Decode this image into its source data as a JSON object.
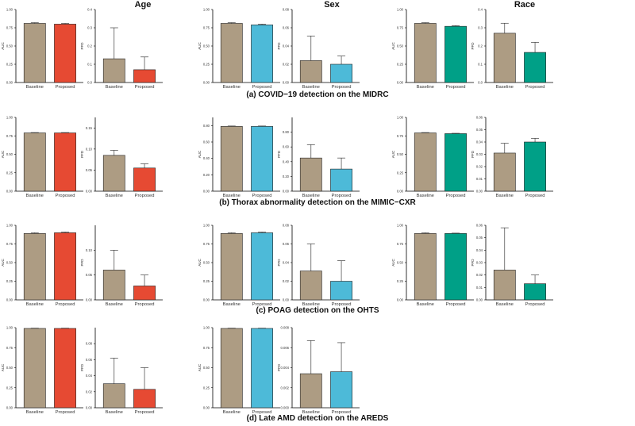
{
  "colors": {
    "baseline": "#ad9c83",
    "age": "#e64a33",
    "sex": "#4dbad8",
    "race": "#00a087"
  },
  "column_titles": [
    "Age",
    "Sex",
    "Race"
  ],
  "captions": [
    "(a) COVID−19 detection on the MIDRC",
    "(b) Thorax abnormality detection on the MIMIC−CXR",
    "(c) POAG detection on the OHTS",
    "(d) Late AMD detection on the AREDS"
  ],
  "chart_data": [
    {
      "row": 0,
      "col": 0,
      "metric": "AUC",
      "type": "bar",
      "categories": [
        "Baseline",
        "Proposed"
      ],
      "values": [
        0.81,
        0.8
      ],
      "errors": [
        0.01,
        0.01
      ],
      "ylabel": "AUC",
      "ylim": [
        0,
        1.0
      ],
      "ticks": [
        "0.00",
        "0.25",
        "0.50",
        "0.75",
        "1.00"
      ],
      "color": "age"
    },
    {
      "row": 0,
      "col": 0,
      "metric": "PFD",
      "type": "bar",
      "categories": [
        "Baseline",
        "Proposed"
      ],
      "values": [
        0.13,
        0.07
      ],
      "errors": [
        0.17,
        0.07
      ],
      "ylabel": "PFD",
      "ylim": [
        0,
        0.4
      ],
      "ticks": [
        "0.0",
        "0.1",
        "0.2",
        "0.3",
        "0.4"
      ],
      "color": "age"
    },
    {
      "row": 0,
      "col": 1,
      "metric": "AUC",
      "type": "bar",
      "categories": [
        "Baseline",
        "Proposed"
      ],
      "values": [
        0.81,
        0.79
      ],
      "errors": [
        0.01,
        0.01
      ],
      "ylabel": "AUC",
      "ylim": [
        0,
        1.0
      ],
      "ticks": [
        "0.00",
        "0.25",
        "0.50",
        "0.75",
        "1.00"
      ],
      "color": "sex"
    },
    {
      "row": 0,
      "col": 1,
      "metric": "PFD",
      "type": "bar",
      "categories": [
        "Baseline",
        "Proposed"
      ],
      "values": [
        0.024,
        0.02
      ],
      "errors": [
        0.027,
        0.009
      ],
      "ylabel": "PFD",
      "ylim": [
        0,
        0.08
      ],
      "ticks": [
        "0.00",
        "0.02",
        "0.04",
        "0.06",
        "0.08"
      ],
      "color": "sex"
    },
    {
      "row": 0,
      "col": 2,
      "metric": "AUC",
      "type": "bar",
      "categories": [
        "Baseline",
        "Proposed"
      ],
      "values": [
        0.81,
        0.77
      ],
      "errors": [
        0.01,
        0.01
      ],
      "ylabel": "AUC",
      "ylim": [
        0,
        1.0
      ],
      "ticks": [
        "0.00",
        "0.25",
        "0.50",
        "0.75",
        "1.00"
      ],
      "color": "race"
    },
    {
      "row": 0,
      "col": 2,
      "metric": "PFD",
      "type": "bar",
      "categories": [
        "Baseline",
        "Proposed"
      ],
      "values": [
        0.27,
        0.165
      ],
      "errors": [
        0.055,
        0.055
      ],
      "ylabel": "PFD",
      "ylim": [
        0,
        0.4
      ],
      "ticks": [
        "0.0",
        "0.1",
        "0.2",
        "0.3",
        "0.4"
      ],
      "color": "race"
    },
    {
      "row": 1,
      "col": 0,
      "metric": "AUC",
      "type": "bar",
      "categories": [
        "Baseline",
        "Proposed"
      ],
      "values": [
        0.79,
        0.79
      ],
      "errors": [
        0.005,
        0.005
      ],
      "ylabel": "AUC",
      "ylim": [
        0,
        1.0
      ],
      "ticks": [
        "0.00",
        "0.25",
        "0.50",
        "0.75",
        "1.00"
      ],
      "color": "age"
    },
    {
      "row": 1,
      "col": 0,
      "metric": "PFD",
      "type": "bar",
      "categories": [
        "Baseline",
        "Proposed"
      ],
      "values": [
        0.085,
        0.055
      ],
      "errors": [
        0.012,
        0.01
      ],
      "ylabel": "PFD",
      "ylim": [
        0,
        0.175
      ],
      "ticks": [
        "0.00",
        "0.05",
        "0.10",
        "0.15"
      ],
      "color": "age"
    },
    {
      "row": 1,
      "col": 1,
      "metric": "AUC",
      "type": "bar",
      "categories": [
        "Baseline",
        "Proposed"
      ],
      "values": [
        0.79,
        0.79
      ],
      "errors": [
        0.005,
        0.005
      ],
      "ylabel": "AUC",
      "ylim": [
        0,
        0.9
      ],
      "ticks": [
        "0.00",
        "0.20",
        "0.40",
        "0.60",
        "0.80"
      ],
      "color": "sex"
    },
    {
      "row": 1,
      "col": 1,
      "metric": "PFD",
      "type": "bar",
      "categories": [
        "Baseline",
        "Proposed"
      ],
      "values": [
        0.45,
        0.3
      ],
      "errors": [
        0.18,
        0.15
      ],
      "ylabel": "PFD",
      "ylim": [
        0,
        1.0
      ],
      "ticks": [
        "0.00",
        "0.20",
        "0.40",
        "0.60",
        "0.80"
      ],
      "color": "sex"
    },
    {
      "row": 1,
      "col": 2,
      "metric": "AUC",
      "type": "bar",
      "categories": [
        "Baseline",
        "Proposed"
      ],
      "values": [
        0.79,
        0.78
      ],
      "errors": [
        0.005,
        0.005
      ],
      "ylabel": "AUC",
      "ylim": [
        0,
        1.0
      ],
      "ticks": [
        "0.00",
        "0.25",
        "0.50",
        "0.75",
        "1.00"
      ],
      "color": "race"
    },
    {
      "row": 1,
      "col": 2,
      "metric": "PFD",
      "type": "bar",
      "categories": [
        "Baseline",
        "Proposed"
      ],
      "values": [
        0.031,
        0.04
      ],
      "errors": [
        0.008,
        0.003
      ],
      "ylabel": "PFD",
      "ylim": [
        0,
        0.06
      ],
      "ticks": [
        "0.00",
        "0.01",
        "0.02",
        "0.03",
        "0.04",
        "0.05",
        "0.06"
      ],
      "color": "race"
    },
    {
      "row": 2,
      "col": 0,
      "metric": "AUC",
      "type": "bar",
      "categories": [
        "Baseline",
        "Proposed"
      ],
      "values": [
        0.89,
        0.9
      ],
      "errors": [
        0.01,
        0.01
      ],
      "ylabel": "AUC",
      "ylim": [
        0,
        1.0
      ],
      "ticks": [
        "0.00",
        "0.25",
        "0.50",
        "0.75",
        "1.00"
      ],
      "color": "age"
    },
    {
      "row": 2,
      "col": 0,
      "metric": "PFD",
      "type": "bar",
      "categories": [
        "Baseline",
        "Proposed"
      ],
      "values": [
        0.06,
        0.028
      ],
      "errors": [
        0.04,
        0.022
      ],
      "ylabel": "PFD",
      "ylim": [
        0,
        0.15
      ],
      "ticks": [
        "0.00",
        "0.05",
        "0.10"
      ],
      "color": "age"
    },
    {
      "row": 2,
      "col": 1,
      "metric": "AUC",
      "type": "bar",
      "categories": [
        "Baseline",
        "Proposed"
      ],
      "values": [
        0.89,
        0.9
      ],
      "errors": [
        0.01,
        0.01
      ],
      "ylabel": "AUC",
      "ylim": [
        0,
        1.0
      ],
      "ticks": [
        "0.00",
        "0.25",
        "0.50",
        "0.75",
        "1.00"
      ],
      "color": "sex"
    },
    {
      "row": 2,
      "col": 1,
      "metric": "PFD",
      "type": "bar",
      "categories": [
        "Baseline",
        "Proposed"
      ],
      "values": [
        0.031,
        0.02
      ],
      "errors": [
        0.029,
        0.022
      ],
      "ylabel": "PFD",
      "ylim": [
        0,
        0.08
      ],
      "ticks": [
        "0.00",
        "0.02",
        "0.04",
        "0.06",
        "0.08"
      ],
      "color": "sex"
    },
    {
      "row": 2,
      "col": 2,
      "metric": "AUC",
      "type": "bar",
      "categories": [
        "Baseline",
        "Proposed"
      ],
      "values": [
        0.89,
        0.89
      ],
      "errors": [
        0.01,
        0.005
      ],
      "ylabel": "AUC",
      "ylim": [
        0,
        1.0
      ],
      "ticks": [
        "0.00",
        "0.25",
        "0.50",
        "0.75",
        "1.00"
      ],
      "color": "race"
    },
    {
      "row": 2,
      "col": 2,
      "metric": "PFD",
      "type": "bar",
      "categories": [
        "Baseline",
        "Proposed"
      ],
      "values": [
        0.024,
        0.013
      ],
      "errors": [
        0.034,
        0.007
      ],
      "ylabel": "PFD",
      "ylim": [
        0,
        0.06
      ],
      "ticks": [
        "0.00",
        "0.01",
        "0.02",
        "0.03",
        "0.04",
        "0.05",
        "0.06"
      ],
      "color": "race"
    },
    {
      "row": 3,
      "col": 0,
      "metric": "AUC",
      "type": "bar",
      "categories": [
        "Baseline",
        "Proposed"
      ],
      "values": [
        0.99,
        0.99
      ],
      "errors": [
        0.003,
        0.003
      ],
      "ylabel": "AUC",
      "ylim": [
        0,
        1.0
      ],
      "ticks": [
        "0.00",
        "0.25",
        "0.50",
        "0.75",
        "1.00"
      ],
      "color": "age"
    },
    {
      "row": 3,
      "col": 0,
      "metric": "PFD",
      "type": "bar",
      "categories": [
        "Baseline",
        "Proposed"
      ],
      "values": [
        0.03,
        0.023
      ],
      "errors": [
        0.032,
        0.027
      ],
      "ylabel": "PFD",
      "ylim": [
        0,
        0.1
      ],
      "ticks": [
        "0.00",
        "0.02",
        "0.04",
        "0.06",
        "0.08"
      ],
      "color": "age"
    },
    {
      "row": 3,
      "col": 1,
      "metric": "AUC",
      "type": "bar",
      "categories": [
        "Baseline",
        "Proposed"
      ],
      "values": [
        0.99,
        0.99
      ],
      "errors": [
        0.003,
        0.003
      ],
      "ylabel": "AUC",
      "ylim": [
        0,
        1.0
      ],
      "ticks": [
        "0.00",
        "0.25",
        "0.50",
        "0.75",
        "1.00"
      ],
      "color": "sex"
    },
    {
      "row": 3,
      "col": 1,
      "metric": "PFD",
      "type": "bar",
      "categories": [
        "Baseline",
        "Proposed"
      ],
      "values": [
        0.0034,
        0.0036
      ],
      "errors": [
        0.0033,
        0.0029
      ],
      "ylabel": "PFD",
      "ylim": [
        0,
        0.008
      ],
      "ticks": [
        "0.000",
        "0.002",
        "0.004",
        "0.006",
        "0.008"
      ],
      "color": "sex"
    }
  ]
}
